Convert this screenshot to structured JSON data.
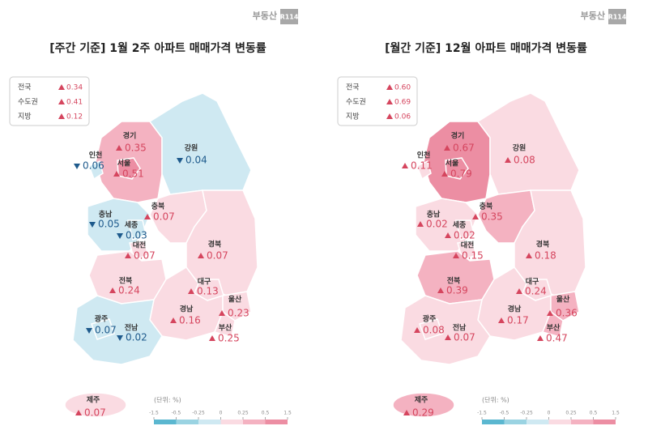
{
  "logo": {
    "text": "부동산",
    "badge": "R114"
  },
  "maps": [
    {
      "title": "[주간 기준] 1월 2주 아파트 매매가격 변동률",
      "summary": [
        {
          "label": "전국",
          "value": 0.34
        },
        {
          "label": "수도권",
          "value": 0.41
        },
        {
          "label": "지방",
          "value": 0.12
        }
      ],
      "regions": [
        {
          "name": "경기",
          "value": 0.35
        },
        {
          "name": "서울",
          "value": 0.51
        },
        {
          "name": "인천",
          "value": -0.06,
          "value_label": "0.06"
        },
        {
          "name": "강원",
          "value": -0.04,
          "value_label": "0.04"
        },
        {
          "name": "충북",
          "value": 0.07
        },
        {
          "name": "충남",
          "value": -0.05,
          "value_label": "0.05"
        },
        {
          "name": "세종",
          "value": -0.03,
          "value_label": "0.03"
        },
        {
          "name": "대전",
          "value": 0.07
        },
        {
          "name": "경북",
          "value": 0.07
        },
        {
          "name": "대구",
          "value": 0.13
        },
        {
          "name": "전북",
          "value": 0.24
        },
        {
          "name": "경남",
          "value": 0.16
        },
        {
          "name": "울산",
          "value": 0.23
        },
        {
          "name": "부산",
          "value": 0.25
        },
        {
          "name": "전남",
          "value": -0.02,
          "value_label": "0.02"
        },
        {
          "name": "광주",
          "value": -0.07,
          "value_label": "0.07"
        },
        {
          "name": "제주",
          "value": 0.07
        }
      ],
      "legend": {
        "unit": "(단위: %)",
        "ticks": [
          -1.5,
          -0.5,
          -0.25,
          0,
          0.25,
          0.5,
          1.5
        ],
        "colors": [
          "#5bb7d0",
          "#9ad3e2",
          "#cfe9f2",
          "#fadbe2",
          "#f4b2c1",
          "#ec8ea3"
        ]
      }
    },
    {
      "title": "[월간 기준] 12월 아파트 매매가격 변동률",
      "summary": [
        {
          "label": "전국",
          "value": 0.6,
          "value_label": "0.60"
        },
        {
          "label": "수도권",
          "value": 0.69
        },
        {
          "label": "지방",
          "value": 0.06
        }
      ],
      "regions": [
        {
          "name": "경기",
          "value": 0.67
        },
        {
          "name": "서울",
          "value": 0.79
        },
        {
          "name": "인천",
          "value": 0.11
        },
        {
          "name": "강원",
          "value": 0.08
        },
        {
          "name": "충북",
          "value": 0.35
        },
        {
          "name": "충남",
          "value": 0.02
        },
        {
          "name": "세종",
          "value": 0.02
        },
        {
          "name": "대전",
          "value": 0.15
        },
        {
          "name": "경북",
          "value": 0.18
        },
        {
          "name": "대구",
          "value": 0.24
        },
        {
          "name": "전북",
          "value": 0.39
        },
        {
          "name": "경남",
          "value": 0.17
        },
        {
          "name": "울산",
          "value": 0.36
        },
        {
          "name": "부산",
          "value": 0.47
        },
        {
          "name": "전남",
          "value": 0.07
        },
        {
          "name": "광주",
          "value": 0.08
        },
        {
          "name": "제주",
          "value": 0.29
        }
      ],
      "legend": {
        "unit": "(단위: %)",
        "ticks": [
          -1.5,
          -0.5,
          -0.25,
          0,
          0.25,
          0.5,
          1.5
        ],
        "colors": [
          "#5bb7d0",
          "#9ad3e2",
          "#cfe9f2",
          "#fadbe2",
          "#f4b2c1",
          "#ec8ea3"
        ]
      }
    }
  ]
}
